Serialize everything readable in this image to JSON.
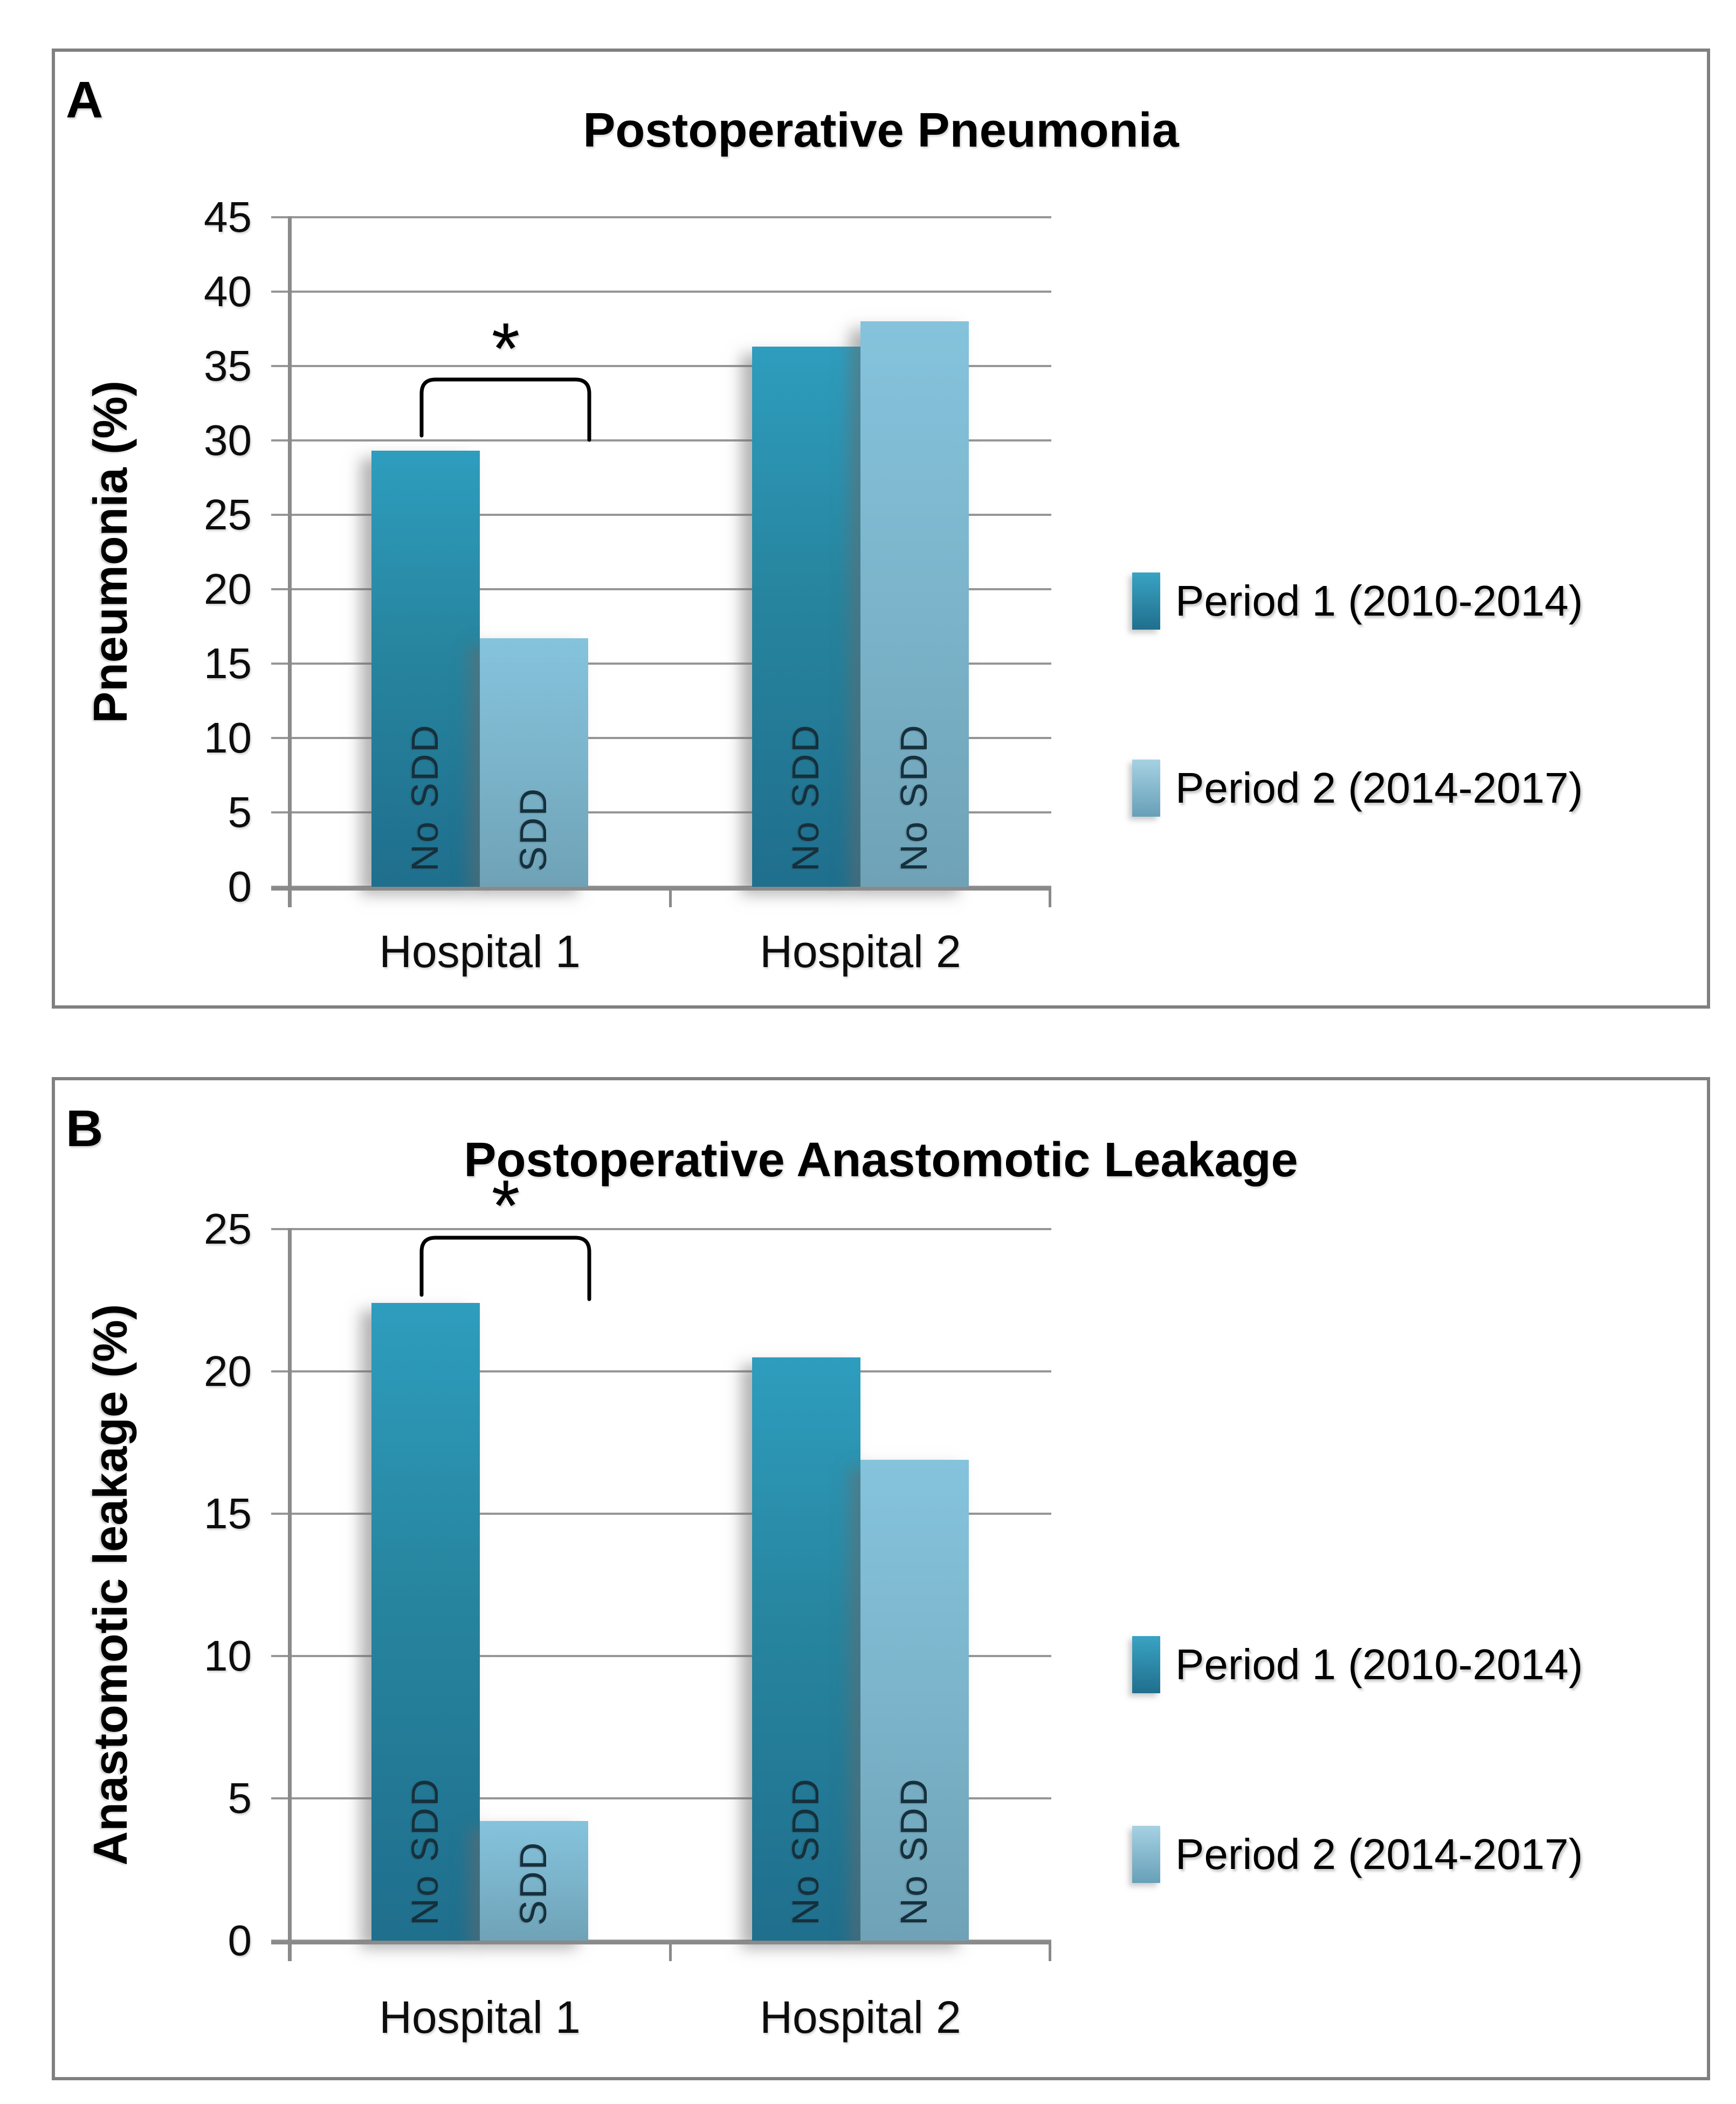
{
  "figure": {
    "background": "#ffffff",
    "panel_border_color": "#808080",
    "axis_color": "#8a8a8a",
    "gridline_color": "#969696"
  },
  "chart_data": [
    {
      "type": "bar",
      "panel_label": "A",
      "title": "Postoperative Pneumonia",
      "xlabel": "",
      "ylabel": "Pneumonia (%)",
      "ylim": [
        0,
        45
      ],
      "ytick_step": 5,
      "ytick_labels": [
        "0",
        "5",
        "10",
        "15",
        "20",
        "25",
        "30",
        "35",
        "40",
        "45"
      ],
      "grid": true,
      "legend_position": "right",
      "categories": [
        "Hospital 1",
        "Hospital 2"
      ],
      "series": [
        {
          "name": "Period 1 (2010-2014)",
          "color_top": "#2E9DBE",
          "color_bottom": "#1F6F8D",
          "values": [
            29.3,
            36.3
          ]
        },
        {
          "name": "Period 2 (2014-2017)",
          "color_top": "#85C3DC",
          "color_bottom": "#6FA2B6",
          "values": [
            16.7,
            38.0
          ]
        }
      ],
      "bar_labels": [
        [
          "No SDD",
          "SDD"
        ],
        [
          "No SDD",
          "No SDD"
        ]
      ],
      "significance": {
        "symbol": "*",
        "category": "Hospital 1",
        "between_series": [
          "Period 1 (2010-2014)",
          "Period 2 (2014-2017)"
        ]
      }
    },
    {
      "type": "bar",
      "panel_label": "B",
      "title": "Postoperative Anastomotic Leakage",
      "xlabel": "",
      "ylabel": "Anastomotic leakage (%)",
      "ylim": [
        0,
        25
      ],
      "ytick_step": 5,
      "ytick_labels": [
        "0",
        "5",
        "10",
        "15",
        "20",
        "25"
      ],
      "grid": true,
      "legend_position": "right",
      "categories": [
        "Hospital 1",
        "Hospital 2"
      ],
      "series": [
        {
          "name": "Period 1 (2010-2014)",
          "color_top": "#2E9DBE",
          "color_bottom": "#1F6F8D",
          "values": [
            22.4,
            20.5
          ]
        },
        {
          "name": "Period 2 (2014-2017)",
          "color_top": "#85C3DC",
          "color_bottom": "#6FA2B6",
          "values": [
            4.2,
            16.9
          ]
        }
      ],
      "bar_labels": [
        [
          "No SDD",
          "SDD"
        ],
        [
          "No SDD",
          "No SDD"
        ]
      ],
      "significance": {
        "symbol": "*",
        "category": "Hospital 1",
        "between_series": [
          "Period 1 (2010-2014)",
          "Period 2 (2014-2017)"
        ]
      }
    }
  ]
}
